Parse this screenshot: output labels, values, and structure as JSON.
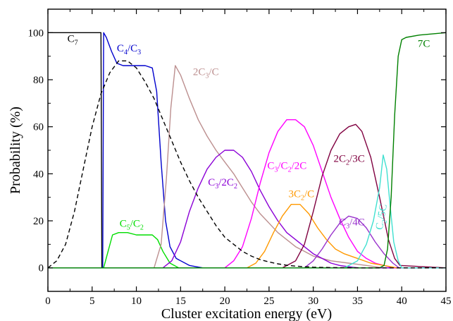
{
  "chart_data": {
    "type": "line",
    "title": "",
    "xlabel": "Cluster excitation energy  (eV)",
    "ylabel": "Probability (%)",
    "xlim": [
      0,
      45
    ],
    "ylim": [
      -10,
      110
    ],
    "xticks": [
      0,
      5,
      10,
      15,
      20,
      25,
      30,
      35,
      40,
      45
    ],
    "yticks": [
      0,
      20,
      40,
      60,
      80,
      100
    ],
    "grid": false,
    "legend": "none",
    "series": [
      {
        "label": [
          {
            "t": "C"
          },
          {
            "t": "7",
            "sub": true
          }
        ],
        "color": "#000000",
        "dash": false,
        "x": [
          0,
          6.0,
          6.05,
          6.1,
          6.3,
          45
        ],
        "y": [
          100,
          100,
          50,
          0,
          0,
          0
        ]
      },
      {
        "label": [
          {
            "t": "C"
          },
          {
            "t": "4",
            "sub": true
          },
          {
            "t": "/C"
          },
          {
            "t": "3",
            "sub": true
          }
        ],
        "color": "#0000cd",
        "dash": false,
        "x": [
          0,
          6.2,
          6.3,
          6.6,
          7.2,
          7.8,
          8.5,
          9.0,
          10.0,
          11.0,
          11.8,
          12.3,
          12.8,
          13.3,
          13.8,
          14.5,
          16.0,
          17.5,
          45
        ],
        "y": [
          0,
          0,
          100,
          98,
          92,
          87,
          86,
          86,
          86,
          86,
          85,
          75,
          45,
          20,
          9,
          4,
          1,
          0,
          0
        ]
      },
      {
        "label": [
          {
            "t": "C"
          },
          {
            "t": "5",
            "sub": true
          },
          {
            "t": "/C"
          },
          {
            "t": "2",
            "sub": true
          }
        ],
        "color": "#00dd00",
        "dash": false,
        "x": [
          0,
          6.3,
          6.8,
          7.3,
          8.0,
          9.0,
          10.0,
          11.0,
          11.8,
          12.4,
          13.0,
          13.8,
          14.8,
          45
        ],
        "y": [
          0,
          0,
          7,
          14,
          15,
          15,
          14,
          14,
          14,
          12,
          7,
          2,
          0,
          0
        ]
      },
      {
        "label": [
          {
            "t": "2C"
          },
          {
            "t": "3",
            "sub": true
          },
          {
            "t": "/C"
          }
        ],
        "color": "#bc8f8f",
        "dash": false,
        "x": [
          0,
          12.0,
          12.8,
          13.4,
          13.9,
          14.4,
          15.0,
          16.0,
          17.0,
          18.0,
          19.0,
          20.0,
          21.0,
          22.0,
          23.0,
          24.0,
          25.0,
          26.0,
          27.0,
          28.0,
          29.0,
          30.0,
          31.0,
          32.0,
          34.0,
          36.0,
          38.0,
          40.0,
          45
        ],
        "y": [
          0,
          0,
          10,
          38,
          68,
          86,
          82,
          72,
          63,
          56,
          50,
          45,
          40,
          34,
          28,
          23,
          19,
          15,
          12,
          9,
          7,
          5,
          4,
          3,
          2,
          1,
          0,
          0,
          0
        ]
      },
      {
        "label": [
          {
            "t": "C"
          },
          {
            "t": "3",
            "sub": true
          },
          {
            "t": "/2C"
          },
          {
            "t": "2",
            "sub": true
          }
        ],
        "color": "#8b00d6",
        "dash": false,
        "x": [
          0,
          13.0,
          14.0,
          15.0,
          16.0,
          17.0,
          18.0,
          19.0,
          20.0,
          21.0,
          22.0,
          23.0,
          24.0,
          25.0,
          26.0,
          27.0,
          28.0,
          29.0,
          30.0,
          31.0,
          32.0,
          33.0,
          35.0,
          37.0,
          39.0,
          45
        ],
        "y": [
          0,
          0,
          3,
          11,
          24,
          34,
          42,
          47,
          50,
          50,
          47,
          41,
          33,
          26,
          20,
          15,
          12,
          9,
          6,
          4,
          2,
          1,
          0,
          0,
          0,
          0
        ]
      },
      {
        "label": [
          {
            "t": "C"
          },
          {
            "t": "3",
            "sub": true
          },
          {
            "t": "/C"
          },
          {
            "t": "2",
            "sub": true
          },
          {
            "t": "/2C"
          }
        ],
        "color": "#ff00ff",
        "dash": false,
        "x": [
          0,
          20.0,
          21.0,
          22.0,
          23.0,
          24.0,
          25.0,
          26.0,
          27.0,
          28.0,
          29.0,
          30.0,
          31.0,
          32.0,
          33.0,
          34.0,
          35.0,
          36.0,
          37.0,
          38.0,
          39.0,
          40.0,
          45
        ],
        "y": [
          0,
          0,
          3,
          9,
          21,
          36,
          49,
          58,
          63,
          63,
          60,
          52,
          41,
          30,
          21,
          13,
          7,
          4,
          2,
          1,
          0,
          0,
          0
        ]
      },
      {
        "label": [
          {
            "t": "3C"
          },
          {
            "t": "2",
            "sub": true
          },
          {
            "t": "/C"
          }
        ],
        "color": "#ff9900",
        "dash": false,
        "x": [
          0,
          22.5,
          23.5,
          24.5,
          25.5,
          26.5,
          27.5,
          28.5,
          29.5,
          30.5,
          31.5,
          32.5,
          33.5,
          35.0,
          36.5,
          38.0,
          39.5,
          45
        ],
        "y": [
          0,
          0,
          2,
          7,
          15,
          22,
          27,
          27,
          23,
          17,
          12,
          8,
          6,
          4,
          2,
          1,
          0,
          0
        ]
      },
      {
        "label": [
          {
            "t": "2C"
          },
          {
            "t": "2",
            "sub": true
          },
          {
            "t": "/3C"
          }
        ],
        "color": "#800040",
        "dash": false,
        "x": [
          0,
          26.5,
          28.0,
          29.0,
          30.0,
          31.0,
          32.0,
          33.0,
          34.0,
          34.8,
          35.5,
          36.5,
          37.5,
          38.5,
          39.2,
          39.8,
          45
        ],
        "y": [
          0,
          0,
          3,
          10,
          24,
          39,
          50,
          57,
          60,
          61,
          58,
          47,
          30,
          12,
          4,
          1,
          0
        ]
      },
      {
        "label": [
          {
            "t": "C"
          },
          {
            "t": "3",
            "sub": true
          },
          {
            "t": "/4C"
          }
        ],
        "color": "#9932cc",
        "dash": false,
        "x": [
          0,
          29.0,
          30.0,
          31.0,
          32.0,
          33.0,
          34.0,
          35.0,
          36.0,
          37.0,
          38.0,
          39.0,
          39.7,
          45
        ],
        "y": [
          0,
          0,
          3,
          8,
          14,
          19,
          22,
          21,
          17,
          11,
          6,
          2,
          0,
          0
        ]
      },
      {
        "label": [
          {
            "t": "C"
          },
          {
            "t": "2",
            "sub": true
          },
          {
            "t": "/5C"
          }
        ],
        "color": "#40e0d0",
        "dash": false,
        "x": [
          0,
          33.5,
          35.0,
          36.0,
          36.8,
          37.5,
          37.9,
          38.3,
          38.7,
          39.1,
          39.6,
          40.0,
          45
        ],
        "y": [
          0,
          0,
          3,
          10,
          20,
          34,
          48,
          42,
          26,
          11,
          3,
          0,
          0
        ]
      },
      {
        "label": [
          {
            "t": "7C"
          }
        ],
        "color": "#008000",
        "dash": false,
        "x": [
          0,
          37.5,
          38.0,
          38.4,
          38.8,
          39.2,
          39.6,
          40.0,
          40.5,
          42.0,
          45
        ],
        "y": [
          0,
          0,
          1,
          8,
          30,
          65,
          90,
          97,
          98,
          99,
          100
        ]
      },
      {
        "label": [],
        "color": "#000000",
        "dash": true,
        "x": [
          0,
          1,
          2,
          3,
          4,
          5,
          6,
          7,
          8,
          9,
          10,
          11,
          12,
          13,
          14,
          15,
          16,
          17,
          18,
          19,
          20,
          21,
          22,
          23,
          24,
          25,
          26,
          27,
          28,
          29,
          30,
          32,
          34,
          36,
          38,
          45
        ],
        "y": [
          0,
          3,
          10,
          24,
          42,
          60,
          74,
          83,
          88,
          88,
          85,
          79,
          72,
          63,
          54,
          45,
          37,
          30,
          24,
          18,
          13,
          10,
          7,
          5,
          3.5,
          2.5,
          1.7,
          1.1,
          0.7,
          0.5,
          0.3,
          0.1,
          0.05,
          0,
          0,
          0
        ]
      }
    ]
  }
}
